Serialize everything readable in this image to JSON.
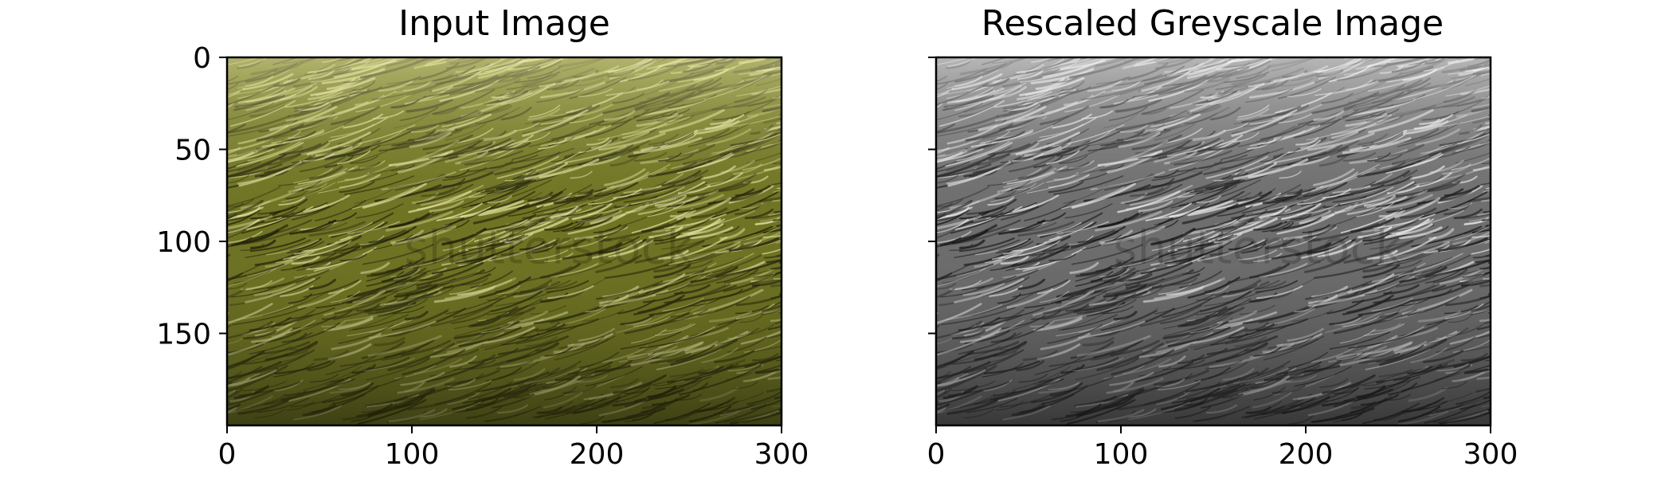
{
  "chart_data": [
    {
      "type": "image",
      "title": "Input Image",
      "xlabel": "",
      "ylabel": "",
      "xlim": [
        0,
        300
      ],
      "ylim": [
        200,
        0
      ],
      "xticks": [
        0,
        100,
        200,
        300
      ],
      "yticks": [
        0,
        50,
        100,
        150
      ],
      "y_tick_labels_shown": true,
      "colormap": "color",
      "watermark": "shutterstock",
      "palette": {
        "base": "#6f7424",
        "light": "#e8e8a8",
        "dark": "#1c1d08"
      }
    },
    {
      "type": "image",
      "title": "Rescaled Greyscale Image",
      "xlabel": "",
      "ylabel": "",
      "xlim": [
        0,
        300
      ],
      "ylim": [
        200,
        0
      ],
      "xticks": [
        0,
        100,
        200,
        300
      ],
      "yticks": [
        0,
        50,
        100,
        150
      ],
      "y_tick_labels_shown": false,
      "colormap": "gray",
      "watermark": "shutterstock",
      "palette": {
        "base": "#6e6e6e",
        "light": "#f2f2f2",
        "dark": "#141414"
      }
    }
  ]
}
